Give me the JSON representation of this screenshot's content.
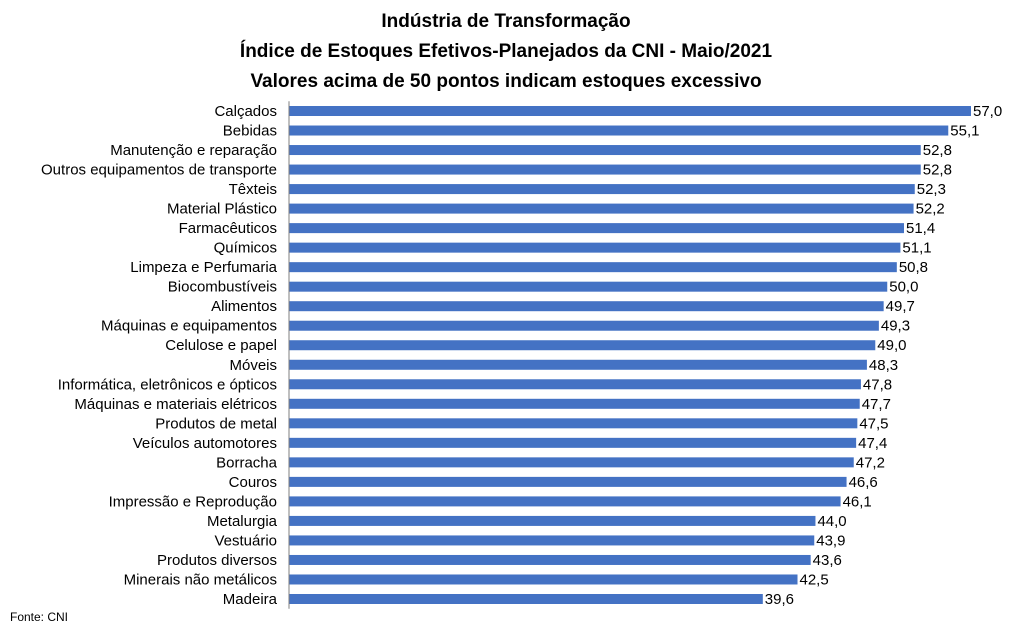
{
  "chart_data": {
    "type": "bar",
    "orientation": "horizontal",
    "title": [
      "Indústria de Transformação",
      "Índice de Estoques Efetivos-Planejados da CNI - Maio/2021",
      "Valores acima de 50 pontos indicam estoques excessivo"
    ],
    "categories": [
      "Calçados",
      "Bebidas",
      "Manutenção e reparação",
      "Outros equipamentos de transporte",
      "Têxteis",
      "Material Plástico",
      "Farmacêuticos",
      "Químicos",
      "Limpeza e Perfumaria",
      "Biocombustíveis",
      "Alimentos",
      "Máquinas e equipamentos",
      "Celulose e papel",
      "Móveis",
      "Informática, eletrônicos e ópticos",
      "Máquinas e materiais elétricos",
      "Produtos de metal",
      "Veículos automotores",
      "Borracha",
      "Couros",
      "Impressão e Reprodução",
      "Metalurgia",
      "Vestuário",
      "Produtos diversos",
      "Minerais não metálicos",
      "Madeira"
    ],
    "values": [
      57.0,
      55.1,
      52.8,
      52.8,
      52.3,
      52.2,
      51.4,
      51.1,
      50.8,
      50.0,
      49.7,
      49.3,
      49.0,
      48.3,
      47.8,
      47.7,
      47.5,
      47.4,
      47.2,
      46.6,
      46.1,
      44.0,
      43.9,
      43.6,
      42.5,
      39.6
    ],
    "value_labels": [
      "57,0",
      "55,1",
      "52,8",
      "52,8",
      "52,3",
      "52,2",
      "51,4",
      "51,1",
      "50,8",
      "50,0",
      "49,7",
      "49,3",
      "49,0",
      "48,3",
      "47,8",
      "47,7",
      "47,5",
      "47,4",
      "47,2",
      "46,6",
      "46,1",
      "44,0",
      "43,9",
      "43,6",
      "42,5",
      "39,6"
    ],
    "xlim": [
      0,
      57.0
    ],
    "grid": false,
    "bar_color": "#4472c4"
  },
  "source": "Fonte: CNI"
}
